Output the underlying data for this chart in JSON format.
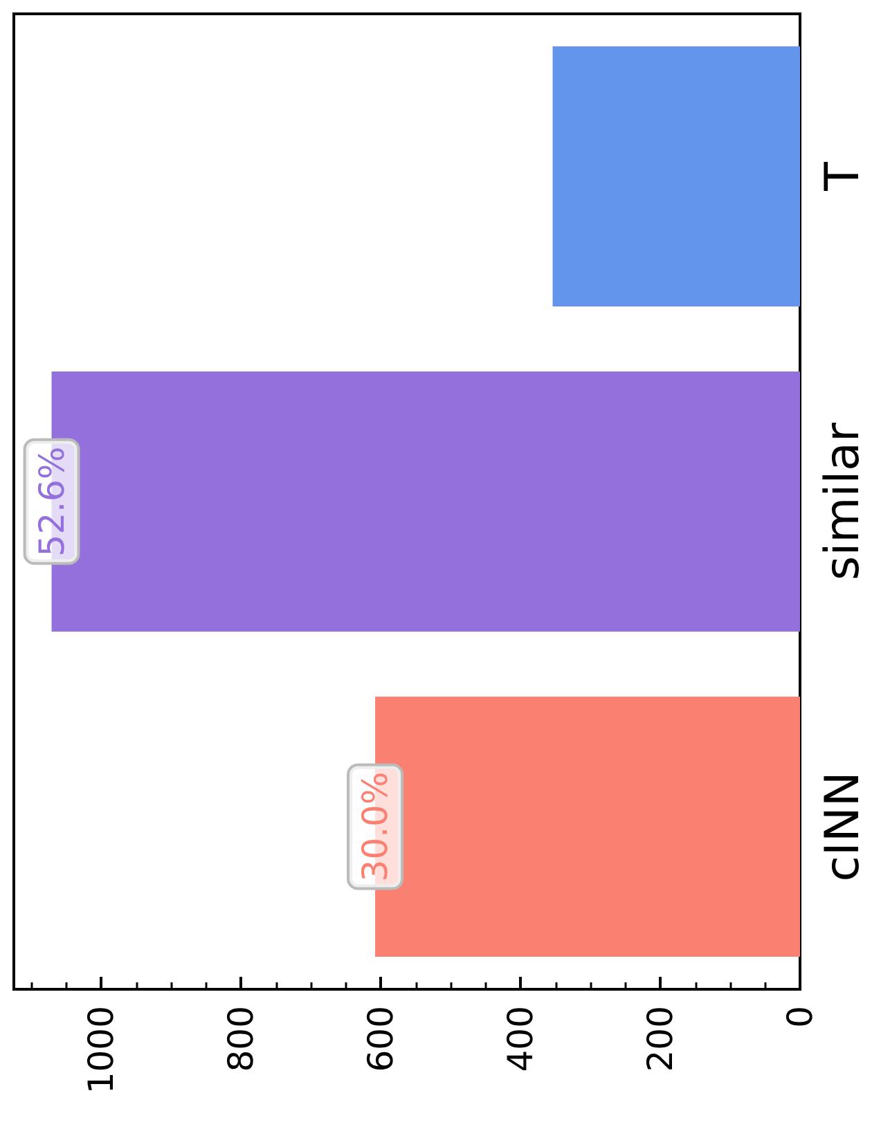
{
  "chart_data": {
    "type": "bar",
    "orientation": "horizontal",
    "categories": [
      "T",
      "similar",
      "cINN"
    ],
    "values": [
      354,
      1071,
      608
    ],
    "colors": [
      "#6495ed",
      "#9370db",
      "#fa8072"
    ],
    "annotations": [
      {
        "text": "52.6%",
        "x": 1071,
        "y": "similar"
      },
      {
        "text": "30.0%",
        "x": 608,
        "y": "cINN"
      }
    ],
    "xlim": [
      1125,
      0
    ],
    "xticks": [
      0,
      200,
      400,
      600,
      800,
      1000
    ],
    "grid": false
  }
}
